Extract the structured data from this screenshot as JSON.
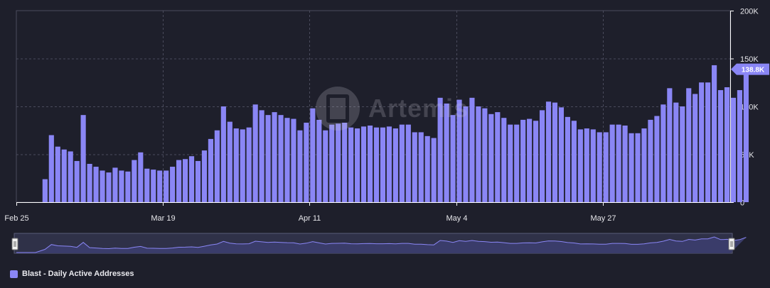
{
  "colors": {
    "background": "#1e1f2b",
    "bar": "#8a86f5",
    "grid": "#4a4b5c",
    "axis_text": "#e6e6ea",
    "badge": "#8a86f5"
  },
  "watermark": {
    "text": "Artemis",
    "icon": "artemis-logo-icon"
  },
  "legend": {
    "label": "Blast - Daily Active Addresses"
  },
  "badge": {
    "label": "138.8K",
    "value": 138800
  },
  "chart_data": {
    "type": "bar",
    "title": "",
    "xlabel": "",
    "ylabel": "",
    "ylim": [
      0,
      200000
    ],
    "y_ticks": [
      {
        "value": 0,
        "label": "0"
      },
      {
        "value": 50000,
        "label": "50K"
      },
      {
        "value": 100000,
        "label": "100K"
      },
      {
        "value": 150000,
        "label": "150K"
      },
      {
        "value": 200000,
        "label": "200K"
      }
    ],
    "x_range": [
      "2024-02-25",
      "2024-06-16"
    ],
    "x_ticks": [
      {
        "date": "2024-02-25",
        "label": "Feb 25"
      },
      {
        "date": "2024-03-19",
        "label": "Mar 19"
      },
      {
        "date": "2024-04-11",
        "label": "Apr 11"
      },
      {
        "date": "2024-05-04",
        "label": "May 4"
      },
      {
        "date": "2024-05-27",
        "label": "May 27"
      }
    ],
    "grid": true,
    "legend_position": "bottom-left",
    "series": [
      {
        "name": "Blast - Daily Active Addresses",
        "start_date": "2024-02-29",
        "values": [
          24000,
          70000,
          58000,
          55000,
          53000,
          43000,
          91000,
          40000,
          37000,
          33000,
          31000,
          36000,
          33000,
          32000,
          44000,
          52000,
          35000,
          34000,
          33000,
          33000,
          37000,
          44000,
          45000,
          48000,
          43000,
          54000,
          66000,
          75000,
          100000,
          84000,
          77000,
          76000,
          78000,
          102000,
          96000,
          91000,
          94000,
          91000,
          88000,
          87000,
          75000,
          83000,
          98000,
          86000,
          75000,
          81000,
          82000,
          83000,
          78000,
          77000,
          79000,
          80000,
          78000,
          78000,
          79000,
          77000,
          81000,
          81000,
          73000,
          73000,
          69000,
          67000,
          109000,
          103000,
          91000,
          107000,
          100000,
          109000,
          100000,
          98000,
          92000,
          94000,
          88000,
          81000,
          81000,
          86000,
          87000,
          85000,
          96000,
          105000,
          104000,
          99000,
          89000,
          85000,
          76000,
          77000,
          76000,
          73000,
          73000,
          81000,
          81000,
          80000,
          72000,
          72000,
          77000,
          86000,
          90000,
          102000,
          119000,
          104000,
          100000,
          119000,
          113000,
          125000,
          125000,
          143000,
          117000,
          120000,
          109000,
          117000,
          138800
        ]
      }
    ]
  }
}
